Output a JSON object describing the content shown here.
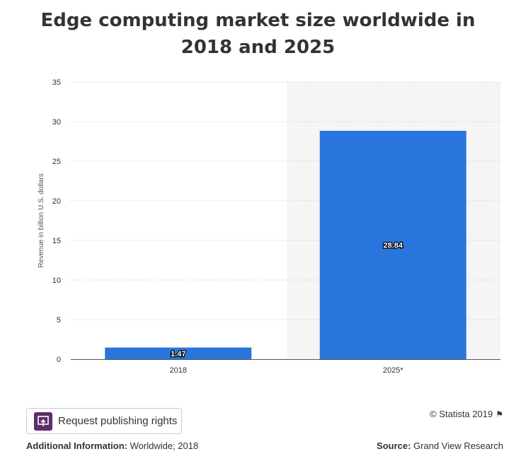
{
  "chart_data": {
    "type": "bar",
    "title": "Edge computing market size worldwide in 2018 and 2025",
    "title_lines": [
      "Edge computing market size worldwide in",
      "2018 and 2025"
    ],
    "categories": [
      "2018",
      "2025*"
    ],
    "values": [
      1.47,
      28.84
    ],
    "value_labels": [
      "1.47",
      "28.84"
    ],
    "ylabel": "Revenue in billion U.S. dollars",
    "xlabel": "",
    "ylim": [
      0,
      35
    ],
    "yticks": [
      0,
      5,
      10,
      15,
      20,
      25,
      30,
      35
    ],
    "grid": true,
    "highlighted_category": "2025*",
    "bar_color": "#2876dd",
    "highlight_bg": "#f5f5f5"
  },
  "publish_button": {
    "label": "Request publishing rights",
    "icon": "publish-icon"
  },
  "copyright": "© Statista 2019",
  "footer": {
    "additional_label": "Additional Information:",
    "additional_value": "Worldwide; 2018",
    "source_label": "Source:",
    "source_value": "Grand View Research"
  }
}
